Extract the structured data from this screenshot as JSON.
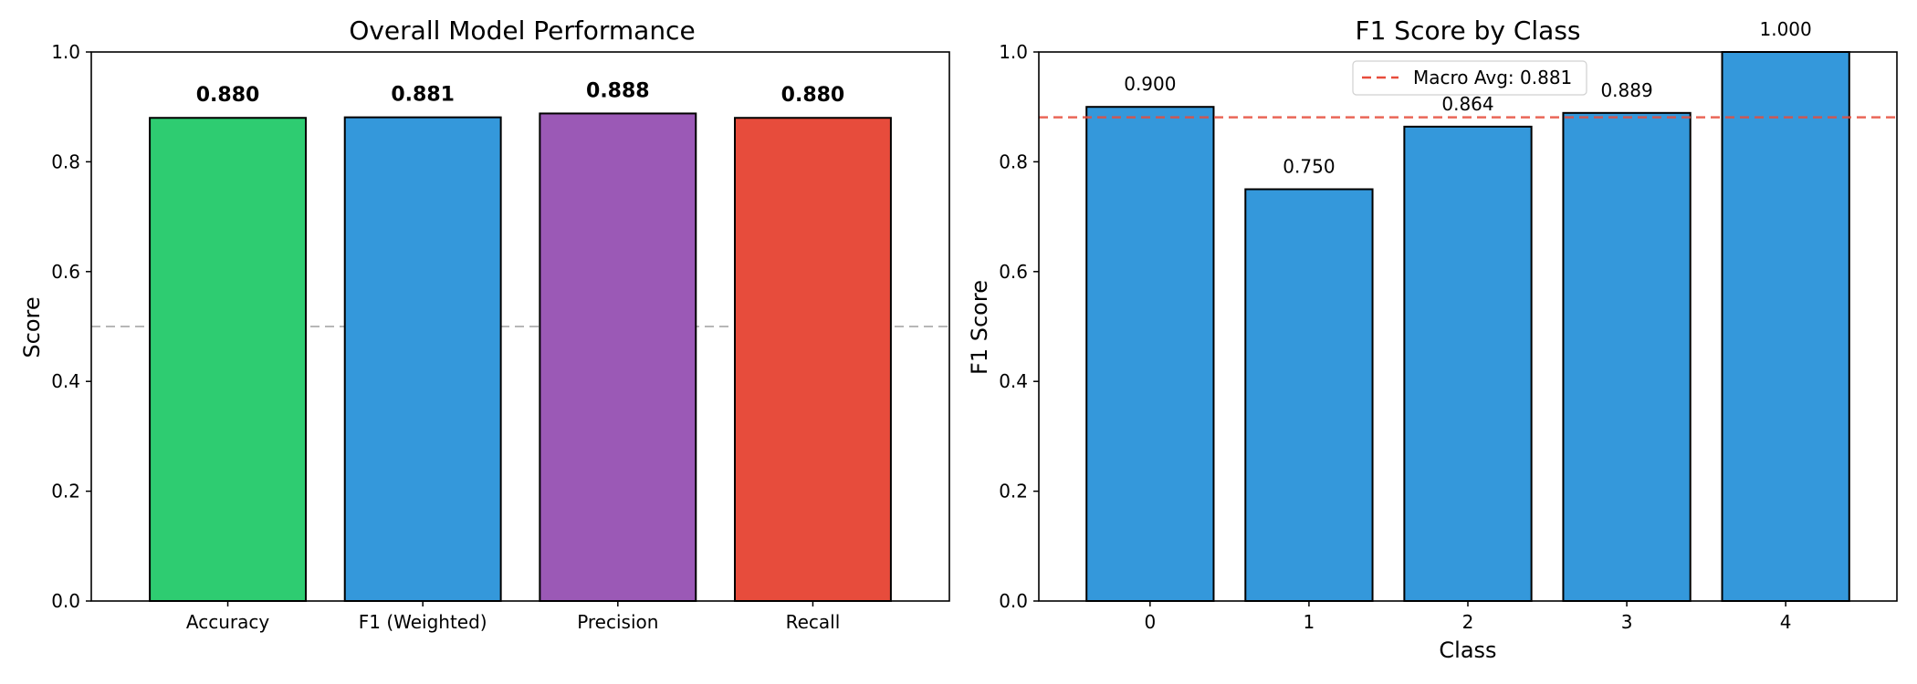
{
  "chart_data": [
    {
      "type": "bar",
      "title": "Overall Model Performance",
      "xlabel": "",
      "ylabel": "Score",
      "ylim": [
        0,
        1.0
      ],
      "yticks": [
        "0.0",
        "0.2",
        "0.4",
        "0.6",
        "0.8",
        "1.0"
      ],
      "categories": [
        "Accuracy",
        "F1 (Weighted)",
        "Precision",
        "Recall"
      ],
      "values": [
        0.88,
        0.881,
        0.888,
        0.88
      ],
      "value_labels": [
        "0.880",
        "0.881",
        "0.888",
        "0.880"
      ],
      "colors": [
        "#2ecc71",
        "#3498db",
        "#9b59b6",
        "#e74c3c"
      ],
      "reference_line": {
        "y": 0.5,
        "color": "#b0b0b0",
        "style": "dashed"
      },
      "grid": false
    },
    {
      "type": "bar",
      "title": "F1 Score by Class",
      "xlabel": "Class",
      "ylabel": "F1 Score",
      "ylim": [
        0,
        1.0
      ],
      "yticks": [
        "0.0",
        "0.2",
        "0.4",
        "0.6",
        "0.8",
        "1.0"
      ],
      "categories": [
        "0",
        "1",
        "2",
        "3",
        "4"
      ],
      "values": [
        0.9,
        0.75,
        0.864,
        0.889,
        1.0
      ],
      "value_labels": [
        "0.900",
        "0.750",
        "0.864",
        "0.889",
        "1.000"
      ],
      "colors": [
        "#3498db",
        "#3498db",
        "#3498db",
        "#3498db",
        "#3498db"
      ],
      "reference_line": {
        "y": 0.881,
        "color": "#e74c3c",
        "style": "dashed",
        "label": "Macro Avg: 0.881"
      },
      "legend": {
        "placement": "top-center",
        "entries": [
          "Macro Avg: 0.881"
        ]
      },
      "grid": false
    }
  ]
}
